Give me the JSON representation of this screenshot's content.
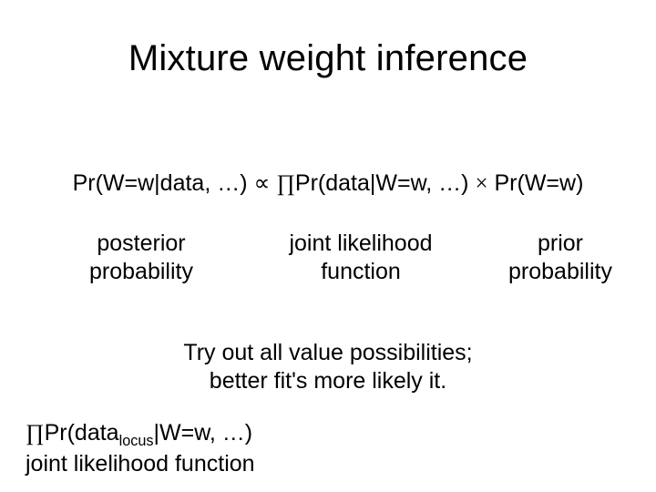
{
  "title": "Mixture weight inference",
  "formula": {
    "posterior": "Pr(W=w|data, …)",
    "propto": "∝",
    "prod": "∏",
    "likelihood": "Pr(data|W=w, …)",
    "times": "×",
    "prior": "Pr(W=w)"
  },
  "labels": {
    "posterior_l1": "posterior",
    "posterior_l2": "probability",
    "joint_l1": "joint likelihood",
    "joint_l2": "function",
    "prior_l1": "prior",
    "prior_l2": "probability"
  },
  "tryout": {
    "l1": "Try out all value possibilities;",
    "l2": "better fit's more likely it."
  },
  "bottom": {
    "prod": "∏",
    "pre": "Pr(data",
    "sub": "locus",
    "post": "|W=w, …)",
    "l2": "joint likelihood function"
  },
  "style": {
    "bg": "#ffffff",
    "text": "#000000",
    "title_fontsize": 40,
    "body_fontsize": 25
  }
}
